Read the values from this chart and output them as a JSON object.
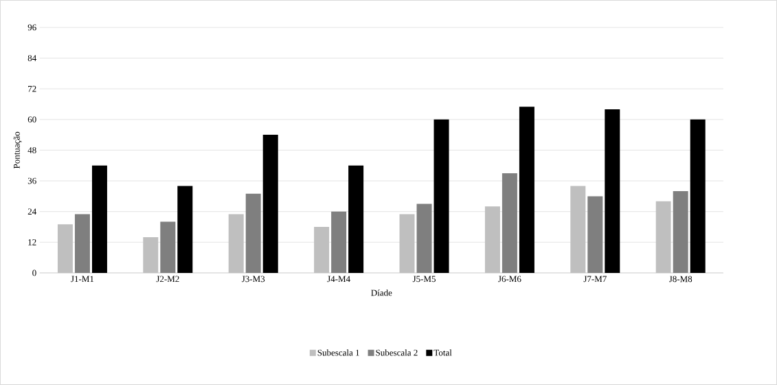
{
  "chart_data": {
    "type": "bar",
    "xlabel": "Díade",
    "ylabel": "Pontuação",
    "categories": [
      "J1-M1",
      "J2-M2",
      "J3-M3",
      "J4-M4",
      "J5-M5",
      "J6-M6",
      "J7-M7",
      "J8-M8"
    ],
    "series": [
      {
        "name": "Subescala 1",
        "color": "#bfbfbf",
        "values": [
          19,
          14,
          23,
          18,
          23,
          26,
          34,
          28
        ]
      },
      {
        "name": "Subescala 2",
        "color": "#7f7f7f",
        "values": [
          23,
          20,
          31,
          24,
          27,
          39,
          30,
          32
        ]
      },
      {
        "name": "Total",
        "color": "#000000",
        "values": [
          42,
          34,
          54,
          42,
          60,
          65,
          64,
          60
        ]
      }
    ],
    "ylim": [
      0,
      96
    ],
    "yticks": [
      0,
      12,
      24,
      36,
      48,
      60,
      72,
      84,
      96
    ],
    "grid": "y",
    "legend": "bottom"
  }
}
